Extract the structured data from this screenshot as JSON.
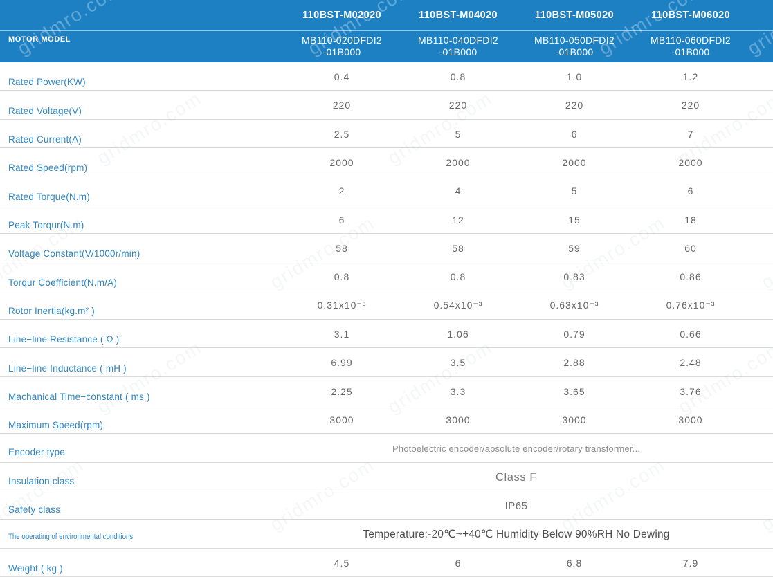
{
  "watermark": {
    "text": "gridmro.com"
  },
  "header": {
    "row_label": "MOTOR MODEL",
    "columns": [
      {
        "model": "110BST-M02020",
        "sub_model": "MB110-020DFDI2\n-01B000"
      },
      {
        "model": "110BST-M04020",
        "sub_model": "MB110-040DFDI2\n-01B000"
      },
      {
        "model": "110BST-M05020",
        "sub_model": "MB110-050DFDI2\n-01B000"
      },
      {
        "model": "110BST-M06020",
        "sub_model": "MB110-060DFDI2\n-01B000"
      }
    ]
  },
  "rows": [
    {
      "label": "Rated Power(KW)",
      "values": [
        "0.4",
        "0.8",
        "1.0",
        "1.2"
      ]
    },
    {
      "label": "Rated Voltage(V)",
      "values": [
        "220",
        "220",
        "220",
        "220"
      ]
    },
    {
      "label": "Rated Current(A)",
      "values": [
        "2.5",
        "5",
        "6",
        "7"
      ]
    },
    {
      "label": "Rated Speed(rpm)",
      "values": [
        "2000",
        "2000",
        "2000",
        "2000"
      ]
    },
    {
      "label": "Rated Torque(N.m)",
      "values": [
        "2",
        "4",
        "5",
        "6"
      ]
    },
    {
      "label": "Peak Torqur(N.m)",
      "values": [
        "6",
        "12",
        "15",
        "18"
      ]
    },
    {
      "label": "Voltage Constant(V/1000r/min)",
      "values": [
        "58",
        "58",
        "59",
        "60"
      ]
    },
    {
      "label": "Torqur Coefficient(N.m/A)",
      "values": [
        "0.8",
        "0.8",
        "0.83",
        "0.86"
      ]
    },
    {
      "label": "Rotor Inertia(kg.m² )",
      "values": [
        "0.31x10⁻³",
        "0.54x10⁻³",
        "0.63x10⁻³",
        "0.76x10⁻³"
      ]
    },
    {
      "label": "Line−line Resistance ( Ω )",
      "values": [
        "3.1",
        "1.06",
        "0.79",
        "0.66"
      ]
    },
    {
      "label": "Line−line Inductance ( mH )",
      "values": [
        "6.99",
        "3.5",
        "2.88",
        "2.48"
      ]
    },
    {
      "label": "Machanical Time−constant ( ms )",
      "values": [
        "2.25",
        "3.3",
        "3.65",
        "3.76"
      ]
    },
    {
      "label": "Maximum Speed(rpm)",
      "values": [
        "3000",
        "3000",
        "3000",
        "3000"
      ]
    },
    {
      "label": "Encoder type",
      "span": "Photoelectric encoder/absolute encoder/rotary transformer..."
    },
    {
      "label": "Insulation class",
      "span": "Class F"
    },
    {
      "label": "Safety class",
      "span": "IP65"
    },
    {
      "label": "The operating of environmental conditions",
      "span": "Temperature:-20℃~+40℃  Humidity Below 90%RH No Dewing"
    },
    {
      "label": "Weight ( kg )",
      "values": [
        "4.5",
        "6",
        "6.8",
        "7.9"
      ]
    }
  ],
  "colors": {
    "header_bg": "#1d80c3",
    "label_blue": "#2f87c6",
    "value_gray": "#676767",
    "row_border": "#dadada"
  }
}
